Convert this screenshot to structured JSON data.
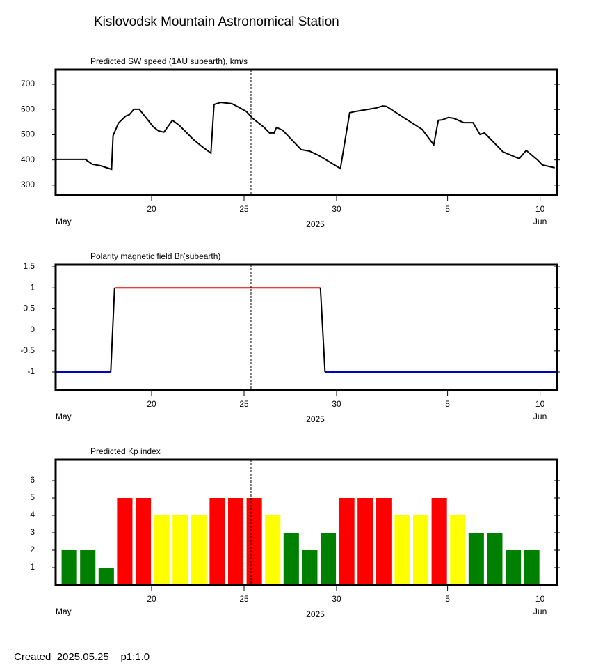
{
  "title": "Kislovodsk Mountain Astronomical Station",
  "footer": "Created  2025.05.25    p1:1.0",
  "chart_data": [
    {
      "type": "line",
      "title": "Predicted SW speed (1AU subearth), km/s",
      "x": [
        "2025-05-14T19:00",
        "2025-05-16T10:00",
        "2025-05-16T19:00",
        "2025-05-17T06:00",
        "2025-05-17T20:00",
        "2025-05-17T22:00",
        "2025-05-18T05:00",
        "2025-05-18T14:00",
        "2025-05-18T19:00",
        "2025-05-19T01:00",
        "2025-05-19T08:00",
        "2025-05-19T19:00",
        "2025-05-20T02:00",
        "2025-05-20T09:00",
        "2025-05-20T16:00",
        "2025-05-21T03:00",
        "2025-05-21T12:00",
        "2025-05-22T06:00",
        "2025-05-22T17:00",
        "2025-05-23T05:00",
        "2025-05-23T09:00",
        "2025-05-23T18:00",
        "2025-05-24T08:00",
        "2025-05-24T19:00",
        "2025-05-25T03:00",
        "2025-05-25T11:00",
        "2025-05-26T02:00",
        "2025-05-26T09:00",
        "2025-05-26T15:00",
        "2025-05-26T18:00",
        "2025-05-27T02:00",
        "2025-05-28T02:00",
        "2025-05-28T13:00",
        "2025-05-29T02:00",
        "2025-05-30T05:00",
        "2025-05-30T12:00",
        "2025-05-30T17:00",
        "2025-05-31T00:00",
        "2025-06-01T03:00",
        "2025-06-01T12:00",
        "2025-06-01T17:00",
        "2025-06-02T15:00",
        "2025-06-03T15:00",
        "2025-06-03T22:00",
        "2025-06-04T06:00",
        "2025-06-04T12:00",
        "2025-06-04T17:00",
        "2025-06-05T01:00",
        "2025-06-05T08:00",
        "2025-06-05T21:00",
        "2025-06-06T09:00",
        "2025-06-06T18:00",
        "2025-06-07T00:00",
        "2025-06-08T00:00",
        "2025-06-08T21:00",
        "2025-06-09T06:00",
        "2025-06-09T21:00",
        "2025-06-10T03:00",
        "2025-06-10T19:00"
      ],
      "values": [
        402,
        402,
        383,
        377,
        363,
        496,
        546,
        573,
        579,
        601,
        601,
        559,
        532,
        515,
        510,
        557,
        537,
        482,
        454,
        427,
        620,
        628,
        623,
        606,
        592,
        565,
        529,
        507,
        507,
        529,
        518,
        441,
        435,
        416,
        366,
        496,
        587,
        592,
        606,
        614,
        612,
        568,
        521,
        493,
        460,
        557,
        559,
        568,
        565,
        548,
        548,
        501,
        507,
        432,
        405,
        438,
        399,
        380,
        369
      ],
      "color": "#000000",
      "xlim": [
        "2025-05-14T19:30",
        "2025-06-10T22:00"
      ],
      "ylim": [
        261,
        758
      ],
      "yticks": [
        300,
        400,
        500,
        600,
        700
      ],
      "xticks": [
        {
          "value": "2025-05-20",
          "label": "20"
        },
        {
          "value": "2025-05-25",
          "label": "25"
        },
        {
          "value": "2025-05-30",
          "label": "30"
        },
        {
          "value": "2025-06-05",
          "label": "5"
        },
        {
          "value": "2025-06-10",
          "label": "10"
        }
      ],
      "month_labels": [
        "May",
        "Jun"
      ],
      "year_label": "2025",
      "current_time": "2025-05-25T09:00"
    },
    {
      "type": "polarity",
      "title": "Polarity magnetic field  Br(subearth)",
      "x": [
        "2025-05-14T19:00",
        "2025-05-17T19:00",
        "2025-05-18T00:00",
        "2025-05-29T03:00",
        "2025-05-29T09:00",
        "2025-06-10T22:00"
      ],
      "values": [
        -1,
        -1,
        1,
        1,
        -1,
        -1
      ],
      "negative_color": "#0000c0",
      "positive_color": "#e00000",
      "transition_color": "#000000",
      "xlim": [
        "2025-05-14T19:30",
        "2025-06-10T22:00"
      ],
      "ylim": [
        -1.43,
        1.55
      ],
      "yticks": [
        -1,
        -0.5,
        0,
        0.5,
        1,
        1.5
      ],
      "xticks": [
        {
          "value": "2025-05-20",
          "label": "20"
        },
        {
          "value": "2025-05-25",
          "label": "25"
        },
        {
          "value": "2025-05-30",
          "label": "30"
        },
        {
          "value": "2025-06-05",
          "label": "5"
        },
        {
          "value": "2025-06-10",
          "label": "10"
        }
      ],
      "month_labels": [
        "May",
        "Jun"
      ],
      "year_label": "2025",
      "current_time": "2025-05-25T09:00"
    },
    {
      "type": "bar",
      "title": "Predicted Kp index",
      "x": [
        "2025-05-15",
        "2025-05-16",
        "2025-05-17",
        "2025-05-18",
        "2025-05-19",
        "2025-05-20",
        "2025-05-21",
        "2025-05-22",
        "2025-05-23",
        "2025-05-24",
        "2025-05-25",
        "2025-05-26",
        "2025-05-27",
        "2025-05-28",
        "2025-05-29",
        "2025-05-30",
        "2025-05-31",
        "2025-06-01",
        "2025-06-02",
        "2025-06-03",
        "2025-06-04",
        "2025-06-05",
        "2025-06-06",
        "2025-06-07",
        "2025-06-08",
        "2025-06-09"
      ],
      "values": [
        2,
        2,
        1,
        5,
        5,
        4,
        4,
        4,
        5,
        5,
        5,
        4,
        3,
        2,
        3,
        5,
        5,
        5,
        4,
        4,
        5,
        4,
        3,
        3,
        2,
        2
      ],
      "colors": [
        "#008000",
        "#008000",
        "#008000",
        "#ff0000",
        "#ff0000",
        "#ffff00",
        "#ffff00",
        "#ffff00",
        "#ff0000",
        "#ff0000",
        "#ff0000",
        "#ffff00",
        "#008000",
        "#008000",
        "#008000",
        "#ff0000",
        "#ff0000",
        "#ff0000",
        "#ffff00",
        "#ffff00",
        "#ff0000",
        "#ffff00",
        "#008000",
        "#008000",
        "#008000",
        "#008000"
      ],
      "xlim": [
        "2025-05-14T19:30",
        "2025-06-10T22:00"
      ],
      "ylim": [
        0,
        7.2
      ],
      "yticks": [
        1,
        2,
        3,
        4,
        5,
        6
      ],
      "xticks": [
        {
          "value": "2025-05-20",
          "label": "20"
        },
        {
          "value": "2025-05-25",
          "label": "25"
        },
        {
          "value": "2025-05-30",
          "label": "30"
        },
        {
          "value": "2025-06-05",
          "label": "5"
        },
        {
          "value": "2025-06-10",
          "label": "10"
        }
      ],
      "month_labels": [
        "May",
        "Jun"
      ],
      "year_label": "2025",
      "current_time": "2025-05-25T09:00"
    }
  ]
}
